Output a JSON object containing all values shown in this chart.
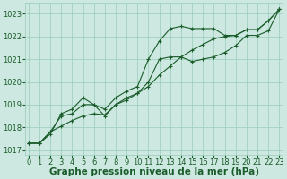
{
  "x": [
    0,
    1,
    2,
    3,
    4,
    5,
    6,
    7,
    8,
    9,
    10,
    11,
    12,
    13,
    14,
    15,
    16,
    17,
    18,
    19,
    20,
    21,
    22,
    23
  ],
  "line1_upper": [
    1017.3,
    1017.3,
    1017.7,
    1018.6,
    1018.8,
    1019.3,
    1019.0,
    1018.8,
    1019.3,
    1019.6,
    1019.8,
    1021.0,
    1021.8,
    1022.35,
    1022.45,
    1022.35,
    1022.35,
    1022.35,
    1022.05,
    1022.05,
    1022.3,
    1022.3,
    1022.7,
    1023.2
  ],
  "line2_mid": [
    1017.3,
    1017.3,
    1017.8,
    1018.5,
    1018.6,
    1019.0,
    1019.0,
    1018.5,
    1019.0,
    1019.3,
    1019.5,
    1020.0,
    1021.0,
    1021.1,
    1021.1,
    1020.9,
    1021.0,
    1021.1,
    1021.3,
    1021.6,
    1022.05,
    1022.05,
    1022.25,
    1023.2
  ],
  "line3_linear": [
    1017.3,
    1017.3,
    1017.8,
    1018.05,
    1018.3,
    1018.5,
    1018.6,
    1018.55,
    1019.0,
    1019.2,
    1019.5,
    1019.8,
    1020.3,
    1020.7,
    1021.1,
    1021.4,
    1021.65,
    1021.9,
    1022.0,
    1022.05,
    1022.3,
    1022.3,
    1022.7,
    1023.2
  ],
  "ylim": [
    1016.8,
    1023.5
  ],
  "xlim": [
    -0.3,
    23.3
  ],
  "yticks": [
    1017,
    1018,
    1019,
    1020,
    1021,
    1022,
    1023
  ],
  "xticks": [
    0,
    1,
    2,
    3,
    4,
    5,
    6,
    7,
    8,
    9,
    10,
    11,
    12,
    13,
    14,
    15,
    16,
    17,
    18,
    19,
    20,
    21,
    22,
    23
  ],
  "bg_color": "#cce8e0",
  "grid_color": "#99ccbb",
  "line_color": "#1a5c2a",
  "xlabel": "Graphe pression niveau de la mer (hPa)",
  "xlabel_fontsize": 7.5,
  "tick_fontsize": 6.0,
  "marker": "+",
  "marker_size": 3.5
}
